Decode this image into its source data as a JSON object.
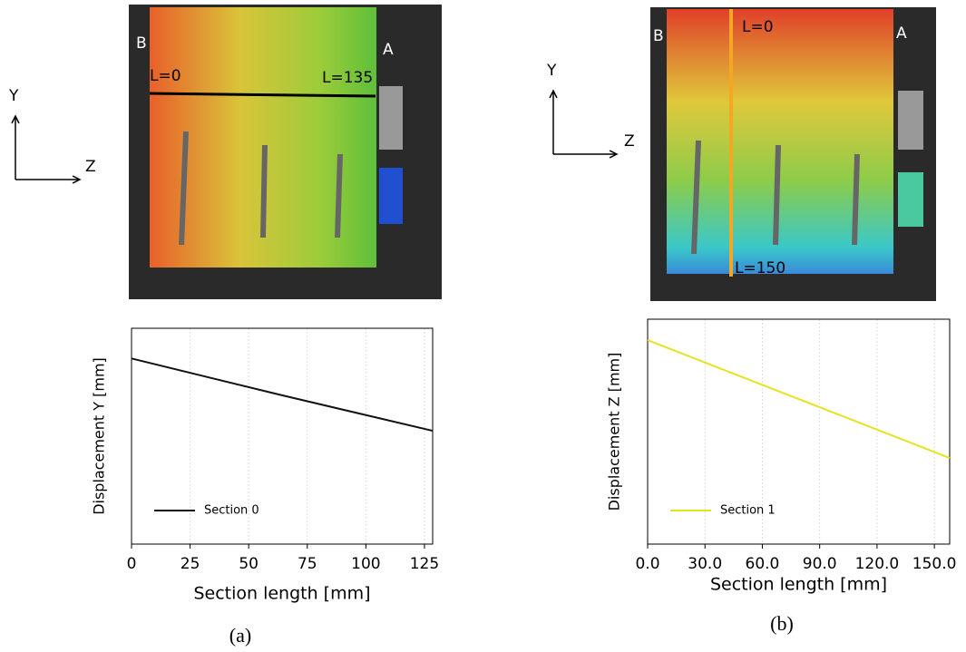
{
  "chart_data": [
    {
      "type": "line",
      "x_label": "Section length [mm]",
      "y_label": "Displacement Y [mm]",
      "x": [
        0,
        64,
        128.5
      ],
      "series": [
        {
          "name": "Section 0",
          "color": "#111111",
          "values": [
            8.6,
            6.9,
            5.25
          ]
        }
      ],
      "xlim": [
        0,
        128.5
      ],
      "ylim": [
        0,
        10
      ],
      "xticks": [
        0,
        25,
        50,
        75,
        100,
        125
      ],
      "grid": true,
      "legend": "lower left"
    },
    {
      "type": "line",
      "x_label": "Section length [mm]",
      "y_label": "Displacement  Z [mm]",
      "x": [
        0,
        79,
        158
      ],
      "series": [
        {
          "name": "Section 1",
          "color": "#e3e322",
          "values": [
            9.07,
            6.45,
            3.83
          ]
        }
      ],
      "xlim": [
        0,
        158
      ],
      "ylim": [
        0,
        10
      ],
      "xticks": [
        {
          "value": 0,
          "label": "0.0"
        },
        {
          "value": 30,
          "label": "30.0"
        },
        {
          "value": 60,
          "label": "60.0"
        },
        {
          "value": 90,
          "label": "90.0"
        },
        {
          "value": 120,
          "label": "120.0"
        },
        {
          "value": 150,
          "label": "150.0"
        }
      ],
      "grid": true,
      "legend": "lower left"
    }
  ],
  "figure": {
    "panels": [
      {
        "caption": "(a)",
        "axis_y": "Y",
        "axis_z": "Z",
        "left": "B",
        "right": "A",
        "start": "L=0",
        "end": "L=135"
      },
      {
        "caption": "(b)",
        "axis_y": "Y",
        "axis_z": "Z",
        "left": "B",
        "right": "A",
        "start": "L=0",
        "end": "L=150"
      }
    ]
  }
}
